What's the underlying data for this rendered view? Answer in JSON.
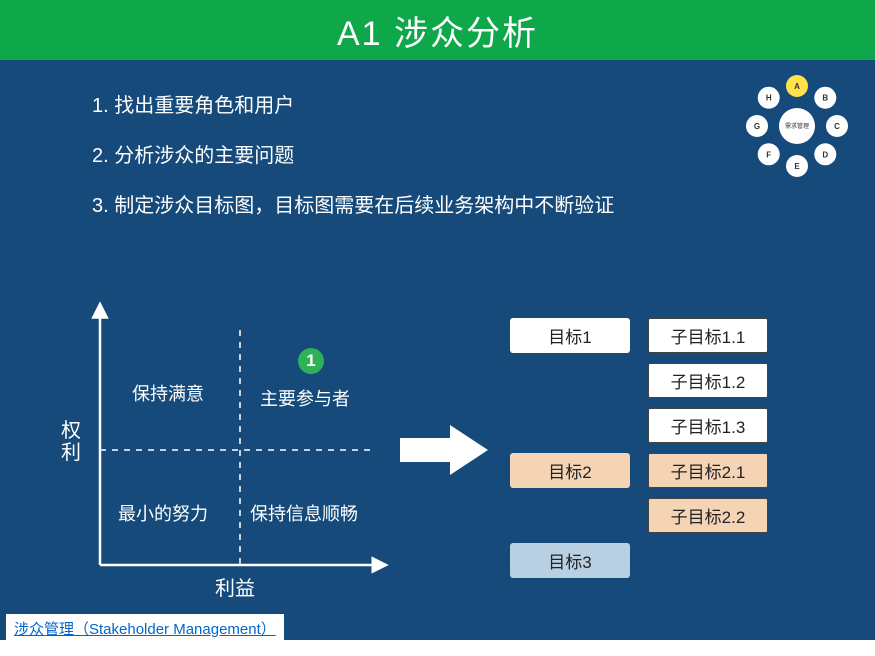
{
  "title": "A1 涉众分析",
  "bullets": [
    "1. 找出重要角色和用户",
    "2. 分析涉众的主要问题",
    "3. 制定涉众目标图，目标图需要在后续业务架构中不断验证"
  ],
  "chart": {
    "type": "quadrant",
    "y_axis_label": "权利",
    "x_axis_label": "利益",
    "axis_color": "#ffffff",
    "divider_dash": "6 6",
    "quadrants": {
      "top_left": "保持满意",
      "top_right": "主要参与者",
      "bottom_left": "最小的努力",
      "bottom_right": "保持信息顺畅"
    },
    "badge": {
      "text": "1",
      "bg": "#2fb157",
      "color": "#ffffff"
    }
  },
  "arrow_color": "#ffffff",
  "goals": {
    "main": [
      {
        "label": "目标1",
        "bg": "#ffffff"
      },
      {
        "label": "目标2",
        "bg": "#f4d4b5"
      },
      {
        "label": "目标3",
        "bg": "#b8d0e2"
      }
    ],
    "subs": {
      "g1": [
        {
          "label": "子目标1.1",
          "bg": "#ffffff"
        },
        {
          "label": "子目标1.2",
          "bg": "#ffffff"
        },
        {
          "label": "子目标1.3",
          "bg": "#ffffff"
        }
      ],
      "g2": [
        {
          "label": "子目标2.1",
          "bg": "#f4d4b5"
        },
        {
          "label": "子目标2.2",
          "bg": "#f4d4b5"
        }
      ]
    }
  },
  "corner_graphic": {
    "center_label": "需求管理",
    "center_bg": "#ffffff",
    "nodes": [
      {
        "label": "A",
        "bg": "#ffe24b"
      },
      {
        "label": "B",
        "bg": "#ffffff"
      },
      {
        "label": "C",
        "bg": "#ffffff"
      },
      {
        "label": "D",
        "bg": "#ffffff"
      },
      {
        "label": "E",
        "bg": "#ffffff"
      },
      {
        "label": "F",
        "bg": "#ffffff"
      },
      {
        "label": "G",
        "bg": "#ffffff"
      },
      {
        "label": "H",
        "bg": "#ffffff"
      }
    ]
  },
  "footer_link": "涉众管理（Stakeholder Management）",
  "colors": {
    "slide_bg": "#154a7a",
    "title_bg": "#0ea84a",
    "text_light": "#ffffff"
  }
}
